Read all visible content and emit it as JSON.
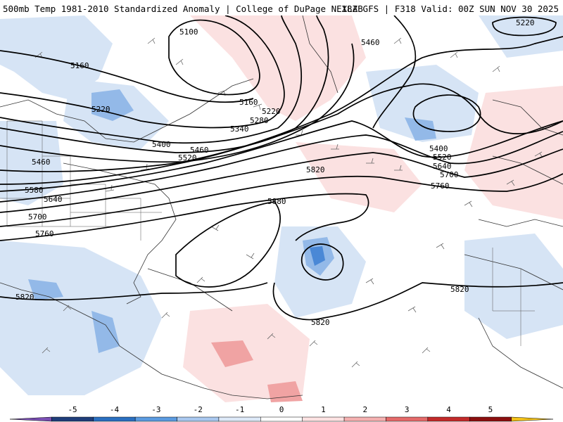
{
  "header": {
    "title_left": "500mb Temp 1981-2010 Standardized Anomaly | College of DuPage NEXLAB",
    "title_right": "18Z GFS | F318 Valid: 00Z SUN NOV 30 2025"
  },
  "contour_labels": [
    "5100",
    "5160",
    "5220",
    "5160",
    "5220",
    "5280",
    "5340",
    "5400",
    "5460",
    "5520",
    "5460",
    "5580",
    "5640",
    "5700",
    "5760",
    "5820",
    "5880",
    "5820",
    "5820",
    "5820",
    "5460",
    "5220",
    "5400",
    "5520",
    "5640",
    "5700",
    "5760"
  ],
  "colorbar": {
    "ticks": [
      "-5",
      "-4",
      "-3",
      "-2",
      "-1",
      "0",
      "1",
      "2",
      "3",
      "4",
      "5"
    ],
    "colors": [
      "#7a4fb3",
      "#1f3d7a",
      "#2a6fc0",
      "#5b9be0",
      "#a9c8ef",
      "#dde9f8",
      "#ffffff",
      "#fde2e2",
      "#f4b0b0",
      "#e46a6a",
      "#c22a2a",
      "#8b0f0f",
      "#f3c21a"
    ]
  }
}
